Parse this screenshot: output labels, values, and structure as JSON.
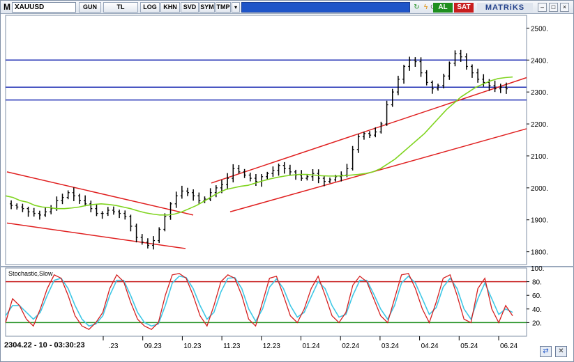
{
  "toolbar": {
    "m_label": "M",
    "symbol": "XAUUSD",
    "buttons": [
      "GUN",
      "TL",
      "LOG",
      "KHN",
      "SVD",
      "SYM",
      "TMP"
    ],
    "dropdown_glyph": "▾",
    "refresh_glyph": "↻",
    "flash_glyph": "ϟ",
    "power_glyph": "⏻",
    "buy_label": "AL",
    "sell_label": "SAT",
    "brand": "MATRiKS",
    "minimize_glyph": "–",
    "restore_glyph": "□",
    "close_glyph": "×"
  },
  "status_text": "2304.22 - 10 - 03:30:23",
  "indicator_label": "Stochastic,Slow",
  "bottom_icons": {
    "link_glyph": "⇄",
    "close_glyph": "✕"
  },
  "colors": {
    "toolbar_blue": "#1f55c8",
    "buy": "#1f8f1f",
    "sell": "#c81e1e",
    "candle": "#000000",
    "channel": "#e02020",
    "horizontal_lines": "#1f2fb4",
    "moving_average": "#7fd41e",
    "stoch_k": "#d42020",
    "stoch_d": "#3fc8e6",
    "level_80": "#c81e1e",
    "level_20": "#1f8f1f"
  },
  "chart_data": {
    "type": "candlestick",
    "symbol": "XAUUSD",
    "price_axis_ticks": [
      1800,
      1900,
      2000,
      2100,
      2200,
      2300,
      2400,
      2500
    ],
    "price_ylim": [
      1760,
      2540
    ],
    "x_tick_labels": [
      "8.23",
      "09.23",
      "10.23",
      "11.23",
      "12.23",
      "01.24",
      "02.24",
      "03.24",
      "04.24",
      "05.24",
      "06.24"
    ],
    "close_series": [
      1945,
      1940,
      1935,
      1925,
      1920,
      1915,
      1925,
      1935,
      1960,
      1970,
      1985,
      1975,
      1960,
      1950,
      1935,
      1920,
      1920,
      1930,
      1925,
      1920,
      1910,
      1880,
      1845,
      1830,
      1820,
      1835,
      1870,
      1910,
      1950,
      1975,
      1990,
      1985,
      1975,
      1960,
      1965,
      1985,
      2000,
      2010,
      2030,
      2060,
      2050,
      2040,
      2030,
      2020,
      2035,
      2045,
      2055,
      2070,
      2060,
      2050,
      2040,
      2030,
      2035,
      2045,
      2030,
      2020,
      2025,
      2035,
      2040,
      2060,
      2120,
      2160,
      2170,
      2165,
      2175,
      2200,
      2260,
      2300,
      2340,
      2380,
      2400,
      2395,
      2360,
      2330,
      2310,
      2320,
      2350,
      2390,
      2420,
      2410,
      2380,
      2360,
      2340,
      2330,
      2320,
      2310,
      2315,
      2310
    ],
    "horizontal_levels": [
      2400,
      2315,
      2275
    ],
    "moving_average": [
      1975,
      1970,
      1960,
      1955,
      1945,
      1940,
      1938,
      1935,
      1935,
      1937,
      1940,
      1945,
      1948,
      1950,
      1948,
      1945,
      1940,
      1935,
      1928,
      1922,
      1918,
      1915,
      1915,
      1918,
      1925,
      1935,
      1945,
      1958,
      1972,
      1985,
      1995,
      2000,
      2005,
      2008,
      2015,
      2022,
      2028,
      2033,
      2037,
      2040,
      2042,
      2042,
      2040,
      2038,
      2037,
      2037,
      2038,
      2040,
      2042,
      2045,
      2050,
      2060,
      2075,
      2090,
      2110,
      2130,
      2150,
      2170,
      2195,
      2220,
      2245,
      2265,
      2285,
      2300,
      2315,
      2325,
      2335,
      2342,
      2345,
      2347
    ],
    "channels": [
      {
        "from": [
          "7.23",
          2050
        ],
        "to": [
          "10.23",
          1915
        ]
      },
      {
        "from": [
          "7.23",
          1890
        ],
        "to": [
          "10.23",
          1810
        ]
      },
      {
        "from": [
          "10.23",
          2015
        ],
        "to": [
          "06.24",
          2345
        ]
      },
      {
        "from": [
          "11.23",
          1925
        ],
        "to": [
          "06.24",
          2185
        ]
      }
    ],
    "stochastic": {
      "name": "Stochastic,Slow",
      "axis_ticks": [
        20,
        40,
        60,
        80
      ],
      "axis_top_label": "100.",
      "ylim": [
        0,
        100
      ],
      "levels": [
        80,
        20
      ],
      "k": [
        20,
        55,
        45,
        25,
        15,
        40,
        70,
        90,
        85,
        60,
        30,
        15,
        10,
        20,
        35,
        70,
        90,
        80,
        50,
        25,
        15,
        10,
        20,
        60,
        90,
        92,
        85,
        60,
        30,
        15,
        45,
        80,
        90,
        85,
        60,
        25,
        15,
        50,
        85,
        88,
        60,
        30,
        20,
        40,
        70,
        88,
        60,
        30,
        20,
        35,
        75,
        88,
        80,
        55,
        30,
        20,
        55,
        90,
        92,
        70,
        40,
        20,
        50,
        85,
        90,
        60,
        25,
        20,
        70,
        85,
        40,
        20,
        45,
        30
      ],
      "d": [
        30,
        45,
        45,
        35,
        25,
        35,
        60,
        82,
        85,
        70,
        45,
        25,
        15,
        18,
        30,
        60,
        82,
        82,
        60,
        35,
        20,
        15,
        18,
        45,
        78,
        88,
        86,
        70,
        45,
        25,
        35,
        65,
        85,
        86,
        70,
        40,
        22,
        40,
        72,
        84,
        70,
        45,
        28,
        35,
        58,
        80,
        70,
        45,
        28,
        32,
        60,
        82,
        82,
        62,
        40,
        25,
        45,
        78,
        88,
        78,
        55,
        32,
        42,
        72,
        85,
        70,
        40,
        25,
        55,
        78,
        55,
        32,
        40,
        35
      ]
    }
  }
}
